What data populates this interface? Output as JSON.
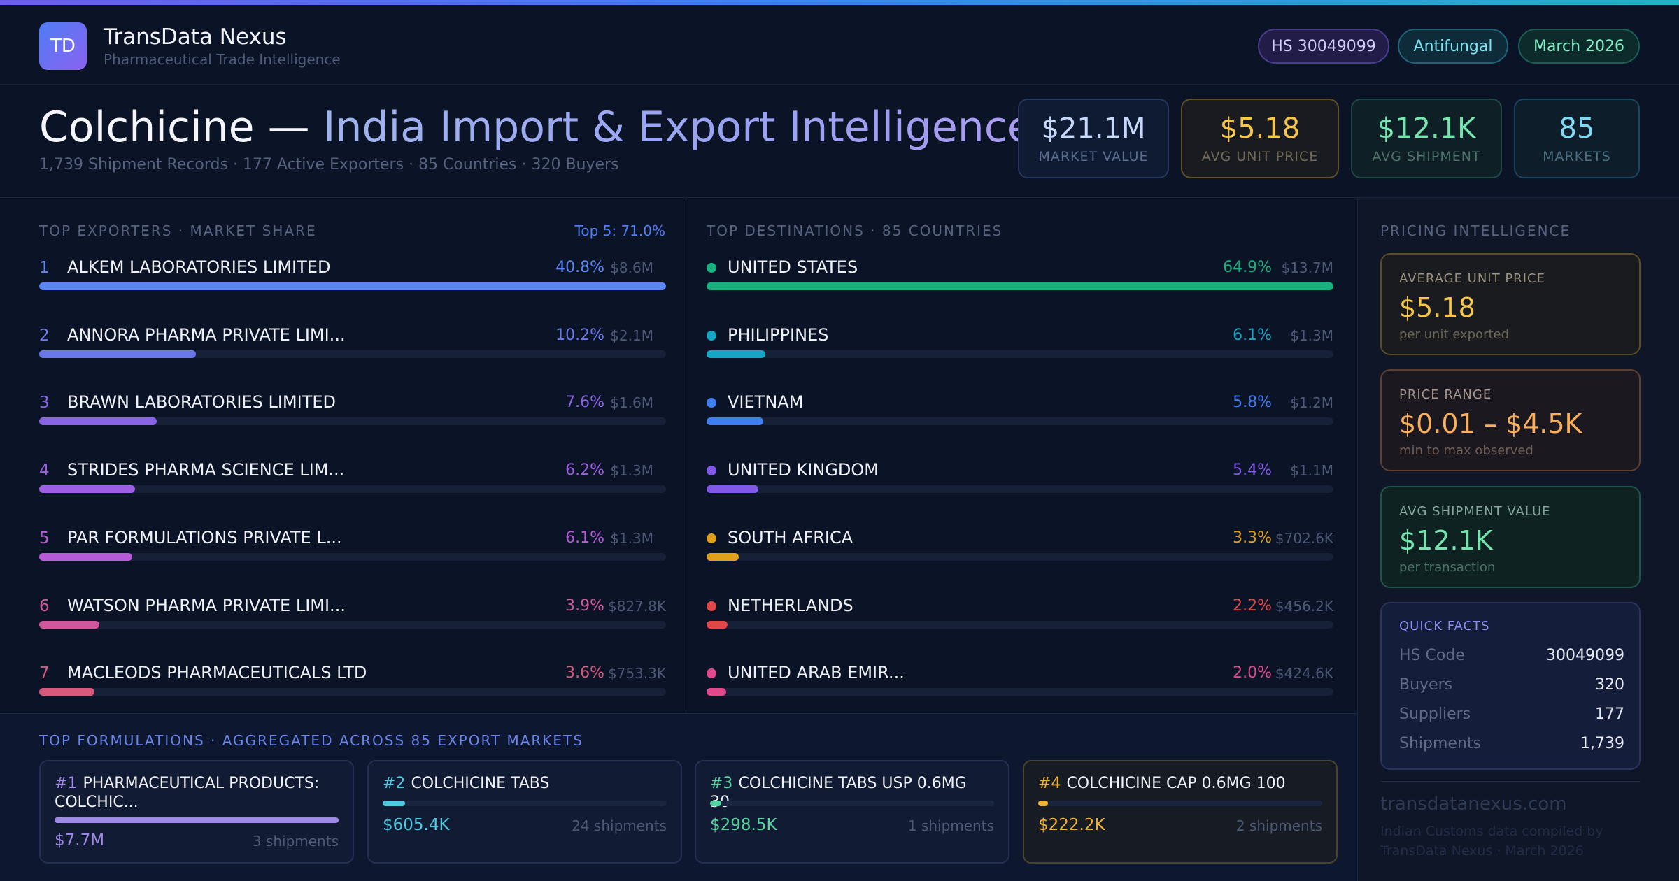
{
  "brand": {
    "logo": "TD",
    "name": "TransData Nexus",
    "tagline": "Pharmaceutical Trade Intelligence"
  },
  "pills": {
    "hs": "HS 30049099",
    "category": "Antifungal",
    "date": "March 2026"
  },
  "title": {
    "part1": "Colchicine — ",
    "part2": "India Import & Export Intelligence",
    "subtitle": "1,739 Shipment Records · 177 Active Exporters · 85 Countries · 320 Buyers"
  },
  "kpis": [
    {
      "value": "$21.1M",
      "label": "MARKET VALUE"
    },
    {
      "value": "$5.18",
      "label": "AVG UNIT PRICE"
    },
    {
      "value": "$12.1K",
      "label": "AVG SHIPMENT"
    },
    {
      "value": "85",
      "label": "MARKETS"
    }
  ],
  "exporters": {
    "label": "TOP EXPORTERS · MARKET SHARE",
    "note": "Top 5: 71.0%",
    "items": [
      {
        "rank": "1",
        "name": "ALKEM LABORATORIES LIMITED",
        "pct": "40.8%",
        "amount": "$8.6M",
        "share": 100,
        "color": "#5b86f0"
      },
      {
        "rank": "2",
        "name": "ANNORA PHARMA PRIVATE LIMI...",
        "pct": "10.2%",
        "amount": "$2.1M",
        "share": 25,
        "color": "#6a78ea"
      },
      {
        "rank": "3",
        "name": "BRAWN LABORATORIES LIMITED",
        "pct": "7.6%",
        "amount": "$1.6M",
        "share": 18.7,
        "color": "#8a64e6"
      },
      {
        "rank": "4",
        "name": "STRIDES PHARMA SCIENCE LIM...",
        "pct": "6.2%",
        "amount": "$1.3M",
        "share": 15.3,
        "color": "#a05ee4"
      },
      {
        "rank": "5",
        "name": "PAR FORMULATIONS PRIVATE L...",
        "pct": "6.1%",
        "amount": "$1.3M",
        "share": 14.8,
        "color": "#b75ad8"
      },
      {
        "rank": "6",
        "name": "WATSON PHARMA PRIVATE LIMI...",
        "pct": "3.9%",
        "amount": "$827.8K",
        "share": 9.6,
        "color": "#d0589c"
      },
      {
        "rank": "7",
        "name": "MACLEODS PHARMACEUTICALS LTD",
        "pct": "3.6%",
        "amount": "$753.3K",
        "share": 8.8,
        "color": "#d65a7c"
      }
    ]
  },
  "destinations": {
    "label": "TOP DESTINATIONS · 85 COUNTRIES",
    "items": [
      {
        "name": "UNITED STATES",
        "pct": "64.9%",
        "amount": "$13.7M",
        "share": 100,
        "color": "#19b27f"
      },
      {
        "name": "PHILIPPINES",
        "pct": "6.1%",
        "amount": "$1.3M",
        "share": 9.4,
        "color": "#15a6c4"
      },
      {
        "name": "VIETNAM",
        "pct": "5.8%",
        "amount": "$1.2M",
        "share": 9,
        "color": "#3f7ef0"
      },
      {
        "name": "UNITED KINGDOM",
        "pct": "5.4%",
        "amount": "$1.1M",
        "share": 8.3,
        "color": "#8258e8"
      },
      {
        "name": "SOUTH AFRICA",
        "pct": "3.3%",
        "amount": "$702.6K",
        "share": 5.1,
        "color": "#e0a01e"
      },
      {
        "name": "NETHERLANDS",
        "pct": "2.2%",
        "amount": "$456.2K",
        "share": 3.4,
        "color": "#e04848"
      },
      {
        "name": "UNITED ARAB EMIR...",
        "pct": "2.0%",
        "amount": "$424.6K",
        "share": 3.1,
        "color": "#e04a8c"
      }
    ]
  },
  "pricing": {
    "label": "PRICING INTELLIGENCE",
    "avg": {
      "label": "AVERAGE UNIT PRICE",
      "value": "$5.18",
      "caption": "per unit exported"
    },
    "range": {
      "label": "PRICE RANGE",
      "value": "$0.01 – $4.5K",
      "caption": "min to max observed"
    },
    "shipment": {
      "label": "AVG SHIPMENT VALUE",
      "value": "$12.1K",
      "caption": "per transaction"
    },
    "facts": {
      "label": "QUICK FACTS",
      "rows": [
        {
          "key": "HS Code",
          "value": "30049099"
        },
        {
          "key": "Buyers",
          "value": "320"
        },
        {
          "key": "Suppliers",
          "value": "177"
        },
        {
          "key": "Shipments",
          "value": "1,739"
        }
      ]
    },
    "site": "transdatanexus.com",
    "credit": "Indian Customs data compiled by TransData Nexus · March 2026"
  },
  "formulations": {
    "label": "TOP FORMULATIONS · AGGREGATED ACROSS 85 EXPORT MARKETS",
    "items": [
      {
        "rank": "#1",
        "name": "PHARMACEUTICAL PRODUCTS: COLCHIC...",
        "value": "$7.7M",
        "shipments": "3 shipments",
        "share": 100,
        "color": "#a08ae8"
      },
      {
        "rank": "#2",
        "name": "COLCHICINE TABS",
        "value": "$605.4K",
        "shipments": "24 shipments",
        "share": 7.8,
        "color": "#4fc8e0"
      },
      {
        "rank": "#3",
        "name": "COLCHICINE TABS USP 0.6MG 30",
        "value": "$298.5K",
        "shipments": "1 shipments",
        "share": 3.9,
        "color": "#55d4a0"
      },
      {
        "rank": "#4",
        "name": "COLCHICINE CAP 0.6MG 100",
        "value": "$222.2K",
        "shipments": "2 shipments",
        "share": 2.9,
        "color": "#f0b030"
      }
    ]
  }
}
